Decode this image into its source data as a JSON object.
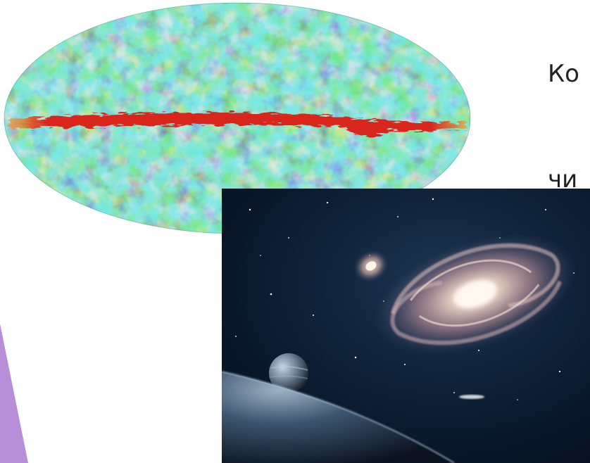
{
  "slide": {
    "text_lines": [
      "Ко",
      "чи"
    ],
    "accent_color": "#b78fd8",
    "cmb_image": {
      "name": "cosmic-microwave-background-map",
      "colors": [
        "#1a2f9c",
        "#2f7fd6",
        "#3fbfa0",
        "#8fd24a",
        "#e8c23a",
        "#d8261e"
      ]
    },
    "space_image": {
      "name": "galaxy-and-planets-illustration",
      "colors": [
        "#07111f",
        "#1d3552",
        "#d9a9a6",
        "#f5e6d8"
      ]
    }
  }
}
